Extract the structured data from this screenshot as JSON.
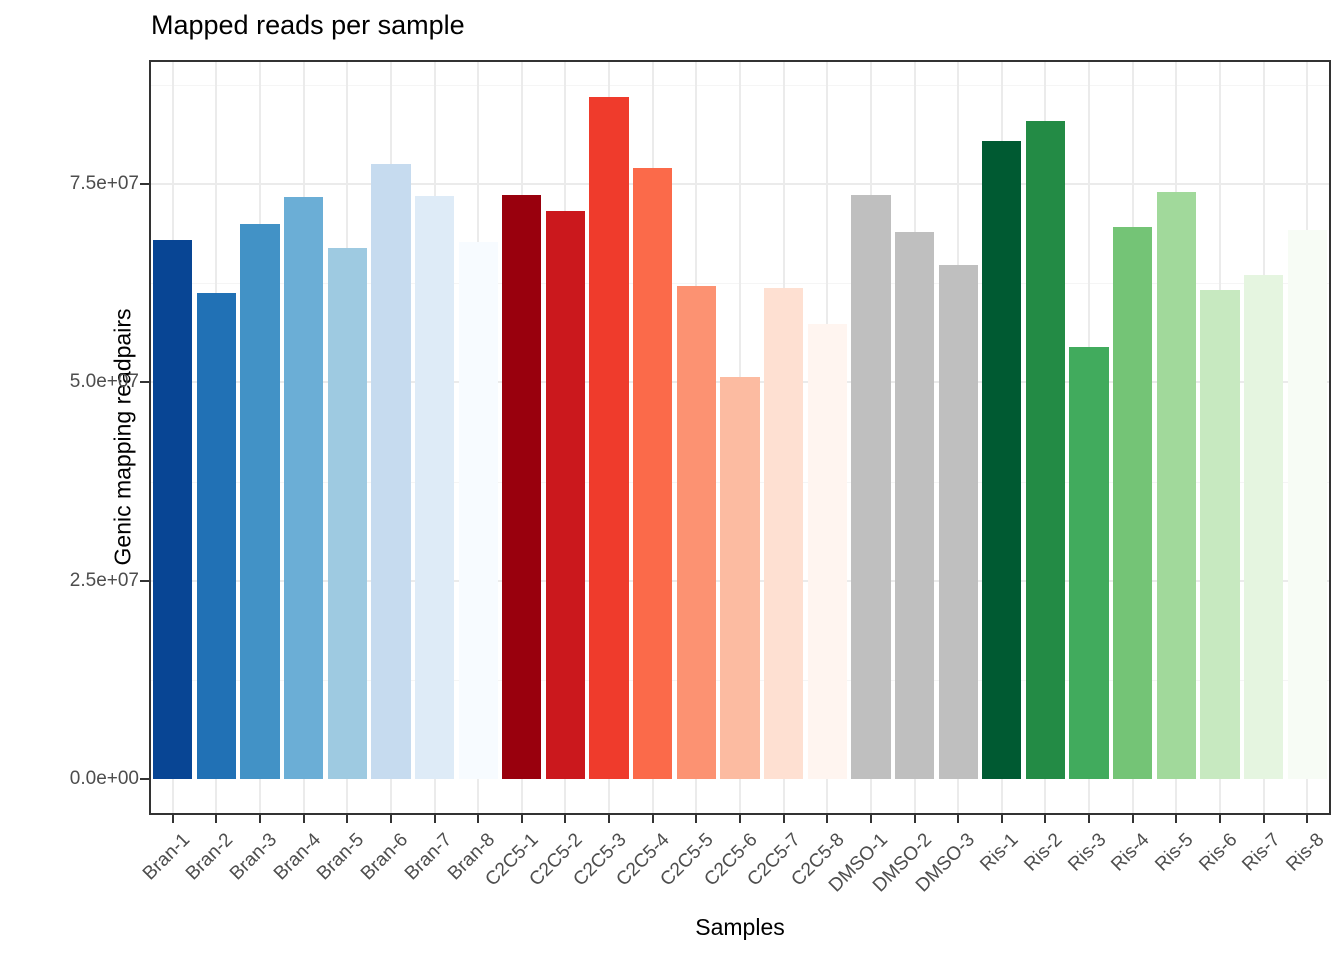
{
  "chart_data": {
    "type": "bar",
    "title": "Mapped reads per sample",
    "xlabel": "Samples",
    "ylabel": "Genic mapping readpairs",
    "categories": [
      "Bran-1",
      "Bran-2",
      "Bran-3",
      "Bran-4",
      "Bran-5",
      "Bran-6",
      "Bran-7",
      "Bran-8",
      "C2C5-1",
      "C2C5-2",
      "C2C5-3",
      "C2C5-4",
      "C2C5-5",
      "C2C5-6",
      "C2C5-7",
      "C2C5-8",
      "DMSO-1",
      "DMSO-2",
      "DMSO-3",
      "Ris-1",
      "Ris-2",
      "Ris-3",
      "Ris-4",
      "Ris-5",
      "Ris-6",
      "Ris-7",
      "Ris-8"
    ],
    "values": [
      67900000,
      61300000,
      70000000,
      73400000,
      66900000,
      77500000,
      73500000,
      67700000,
      73600000,
      71600000,
      86000000,
      77000000,
      62100000,
      50700000,
      61900000,
      57400000,
      73600000,
      68900000,
      64800000,
      80400000,
      82900000,
      54500000,
      69600000,
      74000000,
      61600000,
      63500000,
      69200000
    ],
    "colors": [
      "#084594",
      "#2171B5",
      "#4292C6",
      "#6BAED6",
      "#9ECAE1",
      "#C6DBEF",
      "#DEEBF7",
      "#F7FBFF",
      "#99000D",
      "#CB181D",
      "#EF3B2C",
      "#FB6A4A",
      "#FC9272",
      "#FCBBA1",
      "#FEE0D2",
      "#FFF5F0",
      "#BFBFBF",
      "#BFBFBF",
      "#BFBFBF",
      "#005A32",
      "#238B45",
      "#41AB5D",
      "#74C476",
      "#A1D99B",
      "#C7E9C0",
      "#E5F5E0",
      "#F7FCF5"
    ],
    "groups": [
      {
        "name": "Bran",
        "count": 8,
        "color_family": "blues dark to light"
      },
      {
        "name": "C2C5",
        "count": 8,
        "color_family": "reds dark to light"
      },
      {
        "name": "DMSO",
        "count": 3,
        "color_family": "grey"
      },
      {
        "name": "Ris",
        "count": 8,
        "color_family": "greens dark to light"
      }
    ],
    "ytick_labels": [
      "0.0e+00",
      "2.5e+07",
      "5.0e+07",
      "7.5e+07"
    ],
    "ytick_values": [
      0,
      25000000,
      50000000,
      75000000
    ],
    "yminor_values": [
      12500000,
      37500000,
      62500000,
      87500000
    ],
    "ylim": [
      -4300000,
      90300000
    ],
    "bar_width_fraction": 0.9,
    "grid": true,
    "legend": false
  },
  "style_colors": {
    "panel_border": "#333333",
    "grid_major": "#ebebeb",
    "grid_minor": "#f5f5f5",
    "tick": "#333333",
    "tick_label_text": "#4d4d4d",
    "title_text": "#000000",
    "background": "#ffffff"
  }
}
